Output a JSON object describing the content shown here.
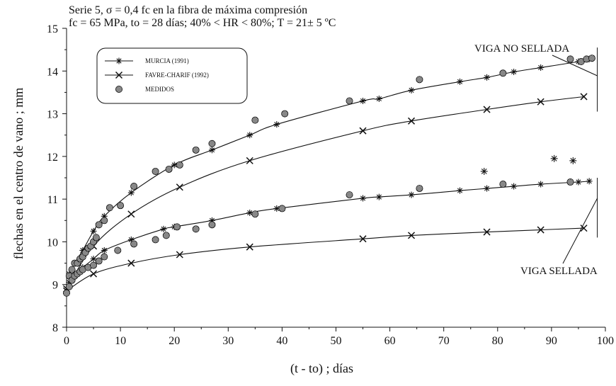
{
  "chart_data": {
    "type": "scatter",
    "title": "Serie 5, σ = 0,4 fc en la fibra de máxima compresión",
    "subtitle": "fc = 65 MPa, to = 28 días; 40% < HR < 80%; T = 21± 5 ºC",
    "xlabel": "(t - to) ; días",
    "ylabel": "flechas en el centro de vano ; mm",
    "xlim": [
      0,
      100
    ],
    "ylim": [
      8,
      15
    ],
    "xticks": [
      0,
      10,
      20,
      30,
      40,
      50,
      60,
      70,
      80,
      90,
      100
    ],
    "yticks": [
      8,
      9,
      10,
      11,
      12,
      13,
      14,
      15
    ],
    "grid": false,
    "legend_position": "top-left",
    "annotations": [
      "VIGA NO SELLADA",
      "VIGA SELLADA"
    ],
    "series": [
      {
        "name": "MURCIA (1991)",
        "marker": "star",
        "curves": [
          {
            "x": [
              0.5,
              1.5,
              3,
              5,
              7,
              12,
              20,
              27,
              34,
              39,
              55,
              58,
              64,
              73,
              78,
              83,
              88,
              95,
              97
            ],
            "y": [
              9.25,
              9.5,
              9.8,
              10.25,
              10.6,
              11.15,
              11.8,
              12.15,
              12.5,
              12.75,
              13.3,
              13.35,
              13.55,
              13.75,
              13.85,
              13.98,
              14.08,
              14.22,
              14.28
            ]
          },
          {
            "x": [
              0.5,
              1.5,
              3,
              5,
              7,
              12,
              18,
              20,
              27,
              34,
              39,
              55,
              58,
              64,
              73,
              78,
              83,
              88,
              95,
              97
            ],
            "y": [
              9.05,
              9.25,
              9.4,
              9.6,
              9.8,
              10.05,
              10.3,
              10.35,
              10.5,
              10.68,
              10.78,
              11.02,
              11.05,
              11.1,
              11.2,
              11.25,
              11.3,
              11.35,
              11.4,
              11.42
            ]
          }
        ]
      },
      {
        "name": "FAVRE-CHARIF (1992)",
        "marker": "x",
        "curves": [
          {
            "x": [
              0,
              5,
              12,
              21,
              34,
              55,
              64,
              78,
              88,
              96
            ],
            "y": [
              8.9,
              9.9,
              10.65,
              11.28,
              11.9,
              12.6,
              12.83,
              13.1,
              13.28,
              13.4
            ]
          },
          {
            "x": [
              0,
              5,
              12,
              21,
              34,
              55,
              64,
              78,
              88,
              96
            ],
            "y": [
              8.85,
              9.25,
              9.5,
              9.7,
              9.88,
              10.07,
              10.15,
              10.23,
              10.28,
              10.32
            ]
          }
        ]
      },
      {
        "name": "MEDIDOS",
        "marker": "circle",
        "points": {
          "x": [
            0,
            0.5,
            1,
            1.5,
            2,
            2.5,
            3,
            3.5,
            4,
            4.5,
            5,
            5.5,
            6,
            7,
            8,
            10,
            12.5,
            16.5,
            19,
            21,
            24,
            27,
            35,
            40.5,
            52.5,
            65.5,
            81,
            93.5,
            95.5,
            96.5,
            97.5,
            0.5,
            1,
            1.5,
            2,
            2.5,
            3,
            4,
            5,
            6,
            7,
            9.5,
            12.5,
            16.5,
            18.5,
            20.5,
            24,
            27,
            35,
            40,
            52.5,
            65.5,
            81,
            93.5
          ],
          "y": [
            8.8,
            9.2,
            9.35,
            9.5,
            9.5,
            9.6,
            9.65,
            9.75,
            9.85,
            9.9,
            10.0,
            10.1,
            10.4,
            10.5,
            10.8,
            10.85,
            11.3,
            11.65,
            11.7,
            11.8,
            12.15,
            12.3,
            12.85,
            13.0,
            13.3,
            13.8,
            13.95,
            14.28,
            14.22,
            14.28,
            14.3,
            8.95,
            9.1,
            9.2,
            9.25,
            9.3,
            9.35,
            9.4,
            9.45,
            9.55,
            9.65,
            9.8,
            9.95,
            10.05,
            10.15,
            10.35,
            10.3,
            10.4,
            10.65,
            10.78,
            11.1,
            11.25,
            11.35,
            11.4
          ]
        }
      }
    ],
    "outlier_stars": {
      "x": [
        77.5,
        90.5,
        94
      ],
      "y": [
        11.65,
        11.95,
        11.9
      ]
    }
  },
  "legend": [
    {
      "label": "MURCIA (1991)",
      "icon": "star-line"
    },
    {
      "label": "FAVRE-CHARIF (1992)",
      "icon": "x-line"
    },
    {
      "label": "MEDIDOS",
      "icon": "hatched-circle"
    }
  ]
}
